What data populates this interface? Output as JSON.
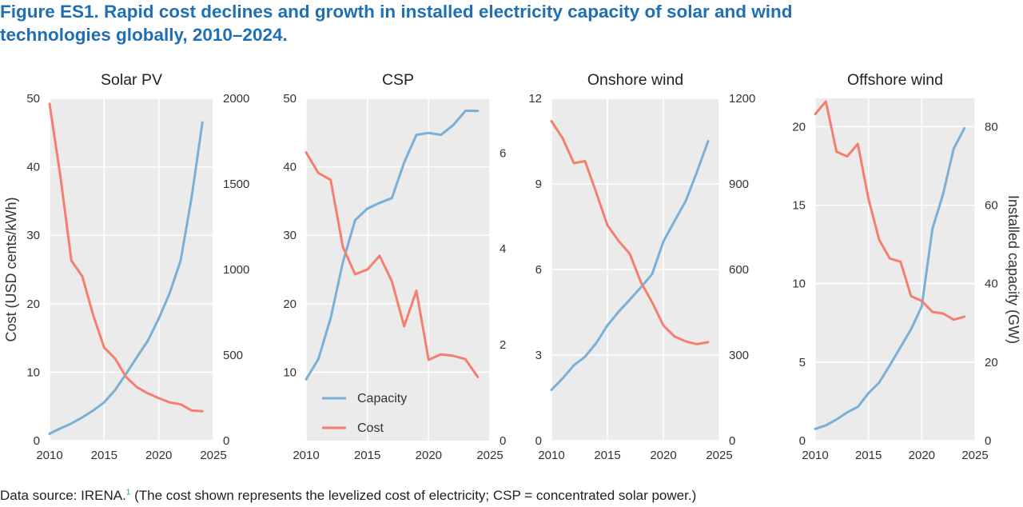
{
  "figure": {
    "title": "Figure ES1. Rapid cost declines and growth in installed electricity capacity of solar and wind technologies globally, 2010–2024.",
    "source_text": "Data source: IRENA.",
    "source_note_marker": "1",
    "source_text_after": " (The cost shown represents the levelized cost of electricity; CSP = concentrated solar power.)"
  },
  "colors": {
    "capacity": "#7aafd6",
    "cost": "#f57f6f",
    "panel_bg": "#ebebeb",
    "grid": "#ffffff"
  },
  "chart_data": [
    {
      "type": "line",
      "title": "Solar PV",
      "ylabel_left": "Cost (USD cents/kWh)",
      "ylabel_right": "",
      "xlim": [
        2010,
        2025
      ],
      "xticks": [
        2010,
        2015,
        2020,
        2025
      ],
      "ylim_left": [
        0,
        50
      ],
      "yticks_left": [
        0,
        10,
        20,
        30,
        40,
        50
      ],
      "ylim_right": [
        0,
        2000
      ],
      "yticks_right": [
        0,
        500,
        1000,
        1500,
        2000
      ],
      "legend": false,
      "series": [
        {
          "name": "Capacity",
          "axis": "right",
          "x": [
            2010,
            2011,
            2012,
            2013,
            2014,
            2015,
            2016,
            2017,
            2018,
            2019,
            2020,
            2021,
            2022,
            2023,
            2024
          ],
          "values": [
            40,
            72,
            100,
            136,
            176,
            224,
            296,
            390,
            488,
            584,
            714,
            862,
            1052,
            1420,
            1860
          ]
        },
        {
          "name": "Cost",
          "axis": "left",
          "x": [
            2010,
            2011,
            2012,
            2013,
            2014,
            2015,
            2016,
            2017,
            2018,
            2019,
            2020,
            2021,
            2022,
            2023,
            2024
          ],
          "values": [
            49.2,
            38.5,
            26.3,
            24.0,
            18.3,
            13.6,
            12.0,
            9.3,
            7.8,
            6.9,
            6.2,
            5.6,
            5.3,
            4.4,
            4.3
          ]
        }
      ]
    },
    {
      "type": "line",
      "title": "CSP",
      "ylabel_left": "",
      "ylabel_right": "",
      "xlim": [
        2010,
        2025
      ],
      "xticks": [
        2010,
        2015,
        2020,
        2025
      ],
      "ylim_left": [
        0,
        50
      ],
      "yticks_left": [
        10,
        20,
        30,
        40,
        50
      ],
      "ylim_right": [
        0,
        7.14
      ],
      "yticks_right": [
        0,
        2,
        4,
        6
      ],
      "legend": true,
      "legend_position": "bottom-left",
      "series": [
        {
          "name": "Capacity",
          "axis": "right",
          "x": [
            2010,
            2011,
            2012,
            2013,
            2014,
            2015,
            2016,
            2017,
            2018,
            2019,
            2020,
            2021,
            2022,
            2023,
            2024
          ],
          "values": [
            1.28,
            1.7,
            2.55,
            3.72,
            4.6,
            4.84,
            4.96,
            5.06,
            5.8,
            6.38,
            6.42,
            6.38,
            6.58,
            6.88,
            6.88
          ]
        },
        {
          "name": "Cost",
          "axis": "left",
          "x": [
            2010,
            2011,
            2012,
            2013,
            2014,
            2015,
            2016,
            2017,
            2018,
            2019,
            2020,
            2021,
            2022,
            2023,
            2024
          ],
          "values": [
            42.1,
            39.1,
            38.1,
            28.3,
            24.3,
            25.0,
            27.0,
            23.3,
            16.7,
            21.9,
            11.8,
            12.6,
            12.4,
            11.9,
            9.3
          ]
        }
      ]
    },
    {
      "type": "line",
      "title": "Onshore wind",
      "ylabel_left": "",
      "ylabel_right": "",
      "xlim": [
        2010,
        2025
      ],
      "xticks": [
        2010,
        2015,
        2020,
        2025
      ],
      "ylim_left": [
        0,
        12
      ],
      "yticks_left": [
        0,
        3,
        6,
        9,
        12
      ],
      "ylim_right": [
        0,
        1200
      ],
      "yticks_right": [
        0,
        300,
        600,
        900,
        1200
      ],
      "legend": false,
      "series": [
        {
          "name": "Capacity",
          "axis": "right",
          "x": [
            2010,
            2011,
            2012,
            2013,
            2014,
            2015,
            2016,
            2017,
            2018,
            2019,
            2020,
            2021,
            2022,
            2023,
            2024
          ],
          "values": [
            178,
            218,
            264,
            294,
            342,
            404,
            452,
            494,
            538,
            584,
            698,
            770,
            840,
            942,
            1050
          ]
        },
        {
          "name": "Cost",
          "axis": "left",
          "x": [
            2010,
            2011,
            2012,
            2013,
            2014,
            2015,
            2016,
            2017,
            2018,
            2019,
            2020,
            2021,
            2022,
            2023,
            2024
          ],
          "values": [
            11.2,
            10.6,
            9.73,
            9.8,
            8.7,
            7.55,
            7.0,
            6.55,
            5.55,
            4.85,
            4.04,
            3.65,
            3.48,
            3.38,
            3.45
          ]
        }
      ]
    },
    {
      "type": "line",
      "title": "Offshore wind",
      "ylabel_left": "",
      "ylabel_right": "Installed capacity (GW)",
      "xlim": [
        2010,
        2025
      ],
      "xticks": [
        2010,
        2015,
        2020,
        2025
      ],
      "ylim_left": [
        0,
        21.8
      ],
      "yticks_left": [
        0,
        5,
        10,
        15,
        20
      ],
      "ylim_right": [
        0,
        87.2
      ],
      "yticks_right": [
        0,
        20,
        40,
        60,
        80
      ],
      "legend": false,
      "series": [
        {
          "name": "Capacity",
          "axis": "right",
          "x": [
            2010,
            2011,
            2012,
            2013,
            2014,
            2015,
            2016,
            2017,
            2018,
            2019,
            2020,
            2021,
            2022,
            2023,
            2024
          ],
          "values": [
            3.0,
            3.9,
            5.4,
            7.2,
            8.6,
            12.1,
            14.8,
            19.2,
            23.8,
            28.4,
            34.2,
            54.0,
            62.8,
            74.4,
            79.6
          ]
        },
        {
          "name": "Cost",
          "axis": "left",
          "x": [
            2010,
            2011,
            2012,
            2013,
            2014,
            2015,
            2016,
            2017,
            2018,
            2019,
            2020,
            2021,
            2022,
            2023,
            2024
          ],
          "values": [
            20.8,
            21.6,
            18.4,
            18.1,
            18.9,
            15.4,
            12.8,
            11.6,
            11.4,
            9.2,
            8.9,
            8.2,
            8.1,
            7.7,
            7.9
          ]
        }
      ]
    }
  ]
}
